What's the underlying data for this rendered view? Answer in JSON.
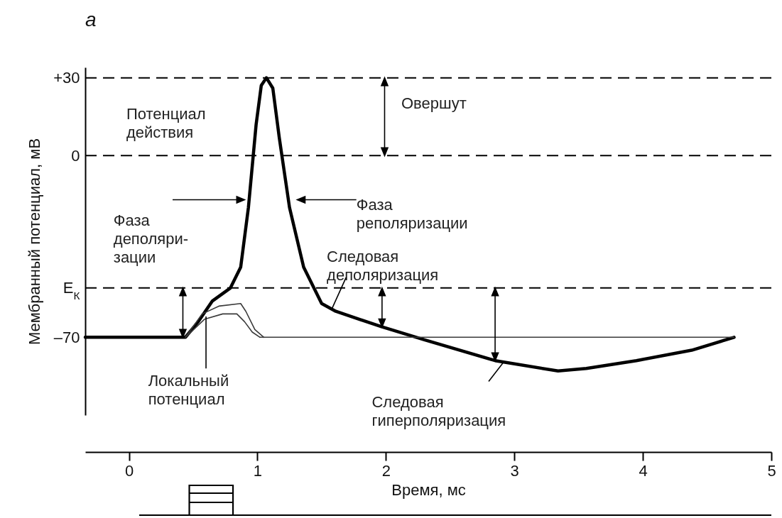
{
  "chart_data": [
    {
      "type": "line",
      "title": "а",
      "xlabel": "Время, мс",
      "ylabel": "Мембранный потенциал, мВ",
      "xlim": [
        -0.34,
        5
      ],
      "xticks": [
        0,
        1,
        2,
        3,
        4,
        5
      ],
      "ylim": [
        -100,
        34
      ],
      "yticks": [
        {
          "value": 30,
          "label": "+30"
        },
        0,
        {
          "value": -51,
          "label": "E$_{К}$"
        },
        {
          "value": -70,
          "label": "–70"
        }
      ],
      "series": [
        {
          "color": "#000000",
          "x": [
            -0.34,
            0.44,
            0.54,
            0.65,
            0.79,
            0.87,
            0.93,
            0.99,
            1.03,
            1.07,
            1.12,
            1.17,
            1.25,
            1.36,
            1.5,
            1.61,
            1.97,
            2.3,
            2.85,
            3.34,
            3.56,
            3.95,
            4.38,
            4.71
          ],
          "values": [
            -70,
            -70,
            -64,
            -56,
            -51,
            -43,
            -20,
            12,
            27,
            30,
            26,
            7,
            -20,
            -43,
            -57,
            -60,
            -66,
            -71,
            -79,
            -83,
            -82,
            -79,
            -75,
            -70
          ]
        },
        {
          "color": "#3a3a3a",
          "x": [
            0.44,
            0.57,
            0.7,
            0.87,
            0.91,
            0.98,
            1.05
          ],
          "values": [
            -70,
            -61,
            -58,
            -57,
            -60,
            -67,
            -70
          ]
        },
        {
          "color": "#3a3a3a",
          "x": [
            0.44,
            0.59,
            0.73,
            0.84,
            0.9,
            0.96,
            1.02
          ],
          "values": [
            -70,
            -63,
            -61,
            -61,
            -64,
            -68,
            -70
          ]
        },
        {
          "color": "#3a3a3a",
          "x": [
            1.02,
            4.71
          ],
          "values": [
            -70,
            -70
          ]
        }
      ],
      "ref_lines": [
        {
          "axis": "y",
          "value": 30,
          "color": "#000000",
          "line_style": "dashed"
        },
        {
          "axis": "y",
          "value": 0,
          "color": "#000000",
          "line_style": "dashed"
        },
        {
          "axis": "y",
          "value": -51,
          "color": "#000000",
          "line_style": "dashed"
        }
      ],
      "annotations": [
        "Потенциал\nдействия",
        "Овершут",
        "Фаза\nдеполяри-\nзации",
        "Фаза\nреполяризации",
        {
          "text": "Следовая\nдеполяризация",
          "x": 1.58,
          "y": -59
        },
        {
          "text": "Локальный\nпотенциал",
          "x": 0.6,
          "y": -62
        },
        {
          "text": "Следовая\nгиперполяризация",
          "x": 2.91,
          "y": -80
        }
      ]
    }
  ]
}
